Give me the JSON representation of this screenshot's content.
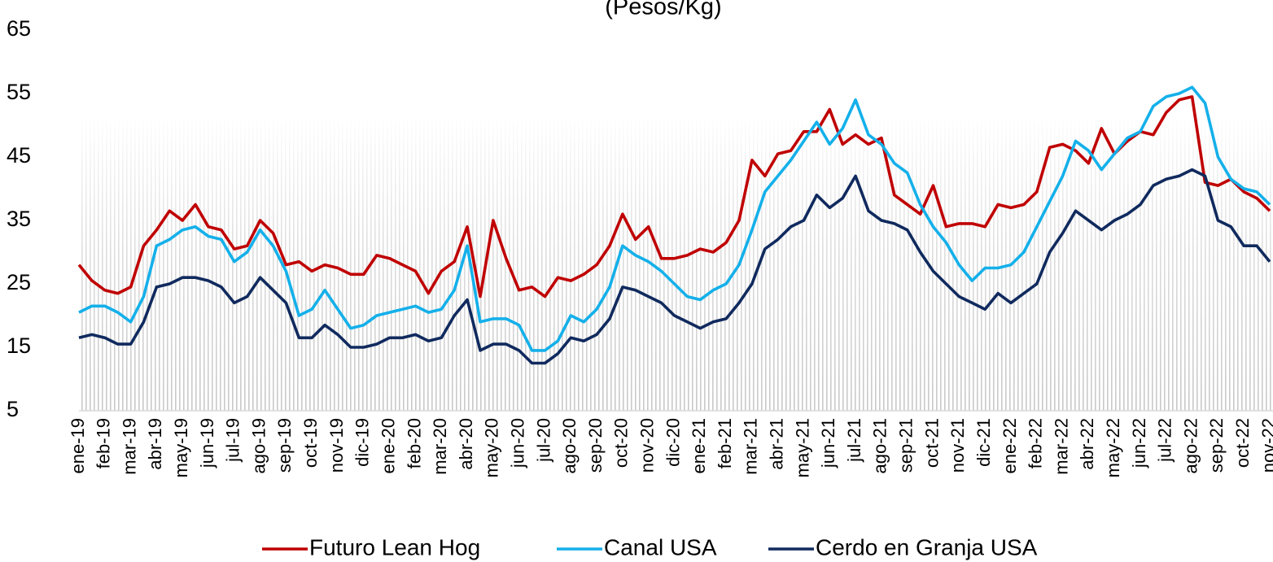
{
  "chart_data": {
    "type": "line",
    "title": "(Pesos/Kg)",
    "categories": [
      "ene-19",
      null,
      "feb-19",
      null,
      "mar-19",
      null,
      "abr-19",
      null,
      "may-19",
      null,
      "jun-19",
      null,
      "jul-19",
      null,
      "ago-19",
      null,
      "sep-19",
      null,
      "oct-19",
      null,
      "nov-19",
      null,
      "dic-19",
      null,
      "ene-20",
      null,
      "feb-20",
      null,
      "mar-20",
      null,
      "abr-20",
      null,
      "may-20",
      null,
      "jun-20",
      null,
      "jul-20",
      null,
      "ago-20",
      null,
      "sep-20",
      null,
      "oct-20",
      null,
      "nov-20",
      null,
      "dic-20",
      null,
      "ene-21",
      null,
      "feb-21",
      null,
      "mar-21",
      null,
      "abr-21",
      null,
      "may-21",
      null,
      "jun-21",
      null,
      "jul-21",
      null,
      "ago-21",
      null,
      "sep-21",
      null,
      "oct-21",
      null,
      "nov-21",
      null,
      "dic-21",
      null,
      "ene-22",
      null,
      "feb-22",
      null,
      "mar-22",
      null,
      "abr-22",
      null,
      "may-22",
      null,
      "jun-22",
      null,
      "jul-22",
      null,
      "ago-22",
      null,
      "sep-22",
      null,
      "oct-22",
      null,
      "nov-22"
    ],
    "series": [
      {
        "name": "Futuro Lean Hog",
        "color": "#c00000",
        "values": [
          28,
          25.5,
          24,
          23.5,
          24.5,
          31,
          33.5,
          36.5,
          35,
          37.5,
          34,
          33.5,
          30.5,
          31,
          35,
          33,
          28,
          28.5,
          27,
          28,
          27.5,
          26.5,
          26.5,
          29.5,
          29,
          28,
          27,
          23.5,
          27,
          28.5,
          34,
          23,
          35,
          29,
          24,
          24.5,
          23,
          26,
          25.5,
          26.5,
          28,
          31,
          36,
          32,
          34,
          29,
          29,
          29.5,
          30.5,
          30,
          31.5,
          35,
          44.5,
          42,
          45.5,
          46,
          49,
          49,
          52.5,
          47,
          48.5,
          47,
          48,
          39,
          37.5,
          36,
          40.5,
          34,
          34.5,
          34.5,
          34,
          37.5,
          37,
          37.5,
          39.5,
          46.5,
          47,
          46,
          44,
          49.5,
          45.5,
          47.5,
          49,
          48.5,
          52,
          54,
          54.5,
          41,
          40.5,
          41.5,
          39.5,
          38.5,
          36.5
        ]
      },
      {
        "name": "Canal USA",
        "color": "#14b0ea",
        "values": [
          20.5,
          21.5,
          21.5,
          20.5,
          19,
          23,
          31,
          32,
          33.5,
          34,
          32.5,
          32,
          28.5,
          30,
          33.5,
          31,
          27,
          20,
          21,
          24,
          21,
          18,
          18.5,
          20,
          20.5,
          21,
          21.5,
          20.5,
          21,
          24,
          31,
          19,
          19.5,
          19.5,
          18.5,
          14.5,
          14.5,
          16,
          20,
          19,
          21,
          24.5,
          31,
          29.5,
          28.5,
          27,
          25,
          23,
          22.5,
          24,
          25,
          28,
          33.5,
          39.5,
          42,
          44.5,
          47.5,
          50.5,
          47,
          49.5,
          54,
          48.5,
          47,
          44,
          42.5,
          37.5,
          34,
          31.5,
          28,
          25.5,
          27.5,
          27.5,
          28,
          30,
          34,
          38,
          42,
          47.5,
          46,
          43,
          45.5,
          48,
          49,
          53,
          54.5,
          55,
          56,
          53.5,
          45,
          41.5,
          40,
          39.5,
          37.5
        ]
      },
      {
        "name": "Cerdo en Granja USA",
        "color": "#102a5e",
        "values": [
          16.5,
          17,
          16.5,
          15.5,
          15.5,
          19,
          24.5,
          25,
          26,
          26,
          25.5,
          24.5,
          22,
          23,
          26,
          24,
          22,
          16.5,
          16.5,
          18.5,
          17,
          15,
          15,
          15.5,
          16.5,
          16.5,
          17,
          16,
          16.5,
          20,
          22.5,
          14.5,
          15.5,
          15.5,
          14.5,
          12.5,
          12.5,
          14,
          16.5,
          16,
          17,
          19.5,
          24.5,
          24,
          23,
          22,
          20,
          19,
          18,
          19,
          19.5,
          22,
          25,
          30.5,
          32,
          34,
          35,
          39,
          37,
          38.5,
          42,
          36.5,
          35,
          34.5,
          33.5,
          30,
          27,
          25,
          23,
          22,
          21,
          23.5,
          22,
          23.5,
          25,
          30,
          33,
          36.5,
          35,
          33.5,
          35,
          36,
          37.5,
          40.5,
          41.5,
          42,
          43,
          42,
          35,
          34,
          31,
          31,
          28.5
        ]
      }
    ],
    "ylim": [
      5,
      65
    ],
    "yticks": [
      5,
      15,
      25,
      35,
      45,
      55,
      65
    ],
    "grid": false,
    "legend": "bottom"
  }
}
